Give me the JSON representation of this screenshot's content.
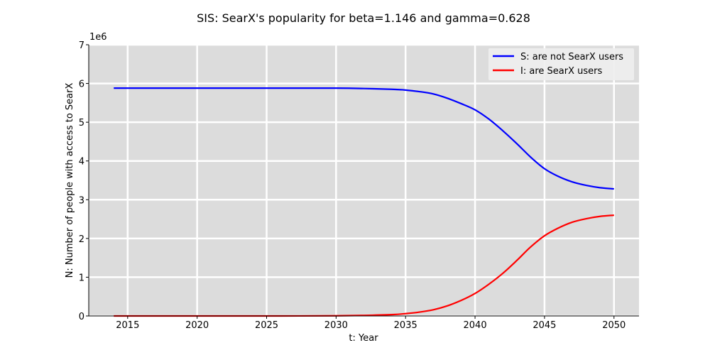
{
  "chart_data": {
    "type": "line",
    "title": "SIS: SearX's popularity for beta=1.146 and gamma=0.628",
    "xlabel": "t: Year",
    "ylabel": "N: Number of people with access to SearX",
    "y_scale_label": "1e6",
    "xlim": [
      2012.2,
      2051.8
    ],
    "ylim": [
      0,
      7000000
    ],
    "xticks": [
      2015,
      2020,
      2025,
      2030,
      2035,
      2040,
      2045,
      2050
    ],
    "yticks": [
      0,
      1,
      2,
      3,
      4,
      5,
      6,
      7
    ],
    "grid": true,
    "legend_position": "top-right",
    "x": [
      2014,
      2018,
      2022,
      2026,
      2030,
      2032,
      2034,
      2035,
      2036,
      2037,
      2038,
      2039,
      2040,
      2041,
      2042,
      2043,
      2044,
      2045,
      2046,
      2047,
      2048,
      2049,
      2050
    ],
    "series": [
      {
        "name": "S: are not SearX users",
        "color": "#0000ff",
        "values": [
          5880000,
          5880000,
          5880000,
          5880000,
          5880000,
          5870000,
          5850000,
          5830000,
          5790000,
          5730000,
          5620000,
          5480000,
          5320000,
          5080000,
          4780000,
          4450000,
          4100000,
          3800000,
          3600000,
          3460000,
          3370000,
          3310000,
          3280000
        ]
      },
      {
        "name": "I: are SearX users",
        "color": "#ff0000",
        "values": [
          0,
          0,
          0,
          0,
          5000,
          15000,
          35000,
          60000,
          100000,
          160000,
          260000,
          400000,
          580000,
          820000,
          1100000,
          1430000,
          1780000,
          2070000,
          2270000,
          2420000,
          2510000,
          2570000,
          2600000
        ]
      }
    ]
  }
}
